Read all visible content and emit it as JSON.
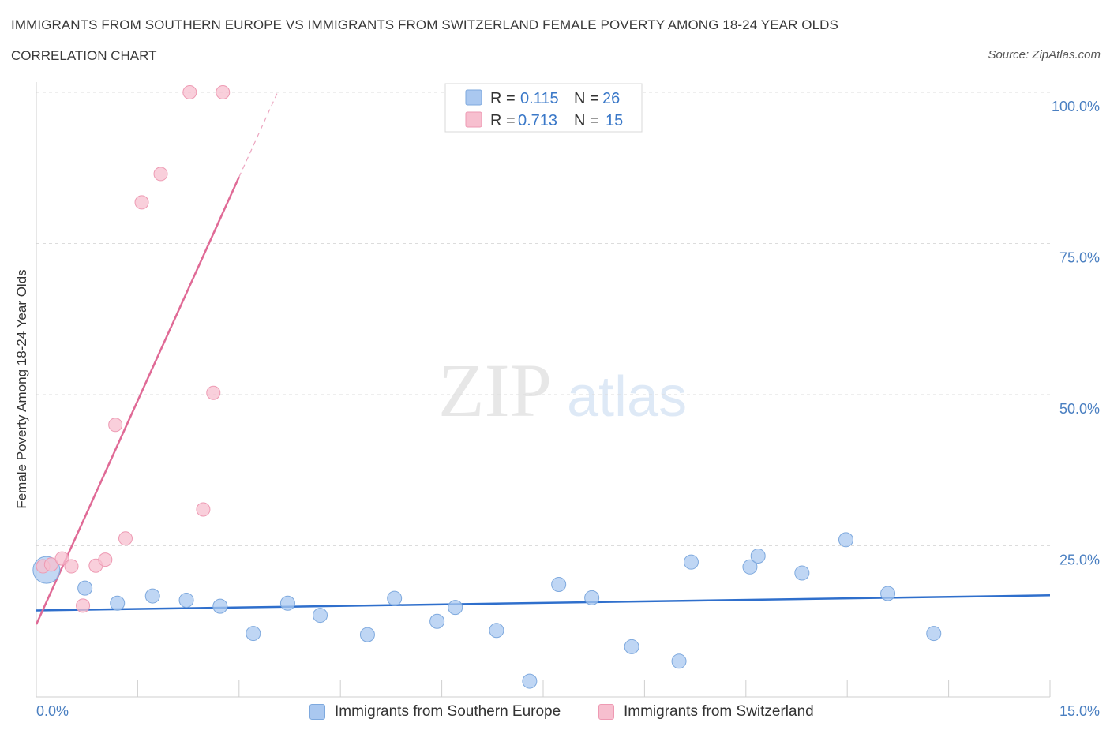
{
  "header": {
    "title": "IMMIGRANTS FROM SOUTHERN EUROPE VS IMMIGRANTS FROM SWITZERLAND FEMALE POVERTY AMONG 18-24 YEAR OLDS",
    "subtitle": "CORRELATION CHART",
    "source": "Source: ZipAtlas.com"
  },
  "watermark": {
    "zip": "ZIP",
    "atlas": "atlas"
  },
  "stats": {
    "row1": {
      "r_label": "R =",
      "r_value": "0.115",
      "n_label": "N =",
      "n_value": "26"
    },
    "row2": {
      "r_label": "R =",
      "r_value": "0.713",
      "n_label": "N =",
      "n_value": "15"
    }
  },
  "legend": {
    "series1": "Immigrants from Southern Europe",
    "series2": "Immigrants from Switzerland"
  },
  "chart_data": {
    "type": "scatter",
    "title": "IMMIGRANTS FROM SOUTHERN EUROPE VS IMMIGRANTS FROM SWITZERLAND FEMALE POVERTY AMONG 18-24 YEAR OLDS",
    "xlabel": "",
    "ylabel": "Female Poverty Among 18-24 Year Olds",
    "xlim": [
      0,
      15
    ],
    "ylim": [
      0,
      100
    ],
    "x_tick_labels": [
      "0.0%",
      "15.0%"
    ],
    "y_ticks": [
      25,
      50,
      75,
      100
    ],
    "y_tick_labels": [
      "25.0%",
      "50.0%",
      "75.0%",
      "100.0%"
    ],
    "grid": true,
    "legend_position": "bottom",
    "colors": {
      "series1_fill": "#aac8f0",
      "series1_stroke": "#7ea9de",
      "series1_line": "#2f6fcc",
      "series2_fill": "#f7bfcf",
      "series2_stroke": "#ee9ab3",
      "series2_line": "#e06a96",
      "tick_text": "#4a7fc1",
      "grid": "#dcdcdc"
    },
    "series": [
      {
        "name": "Immigrants from Southern Europe",
        "points": [
          {
            "x": 0.15,
            "y": 21.0,
            "big": true
          },
          {
            "x": 0.72,
            "y": 18.0
          },
          {
            "x": 1.2,
            "y": 15.5
          },
          {
            "x": 1.72,
            "y": 16.7
          },
          {
            "x": 2.22,
            "y": 16.0
          },
          {
            "x": 2.72,
            "y": 15.0
          },
          {
            "x": 3.21,
            "y": 10.5
          },
          {
            "x": 3.72,
            "y": 15.5
          },
          {
            "x": 4.2,
            "y": 13.5
          },
          {
            "x": 4.9,
            "y": 10.3
          },
          {
            "x": 5.3,
            "y": 16.3
          },
          {
            "x": 5.93,
            "y": 12.5
          },
          {
            "x": 6.2,
            "y": 14.8
          },
          {
            "x": 6.81,
            "y": 11.0
          },
          {
            "x": 7.3,
            "y": 2.6
          },
          {
            "x": 7.73,
            "y": 18.6
          },
          {
            "x": 8.22,
            "y": 16.4
          },
          {
            "x": 8.81,
            "y": 8.3
          },
          {
            "x": 9.51,
            "y": 5.9
          },
          {
            "x": 9.69,
            "y": 22.3
          },
          {
            "x": 10.56,
            "y": 21.5
          },
          {
            "x": 10.68,
            "y": 23.3
          },
          {
            "x": 11.33,
            "y": 20.5
          },
          {
            "x": 11.98,
            "y": 26.0
          },
          {
            "x": 12.6,
            "y": 17.1
          },
          {
            "x": 13.28,
            "y": 10.5
          }
        ],
        "trend": {
          "x0": 0.0,
          "y0": 14.3,
          "x1": 15.0,
          "y1": 16.8
        }
      },
      {
        "name": "Immigrants from Switzerland",
        "points": [
          {
            "x": 0.1,
            "y": 21.6
          },
          {
            "x": 0.22,
            "y": 21.9
          },
          {
            "x": 0.38,
            "y": 22.9
          },
          {
            "x": 0.52,
            "y": 21.6
          },
          {
            "x": 0.69,
            "y": 15.1
          },
          {
            "x": 0.88,
            "y": 21.7
          },
          {
            "x": 1.02,
            "y": 22.7
          },
          {
            "x": 1.17,
            "y": 45.0
          },
          {
            "x": 1.32,
            "y": 26.2
          },
          {
            "x": 1.56,
            "y": 81.8
          },
          {
            "x": 1.84,
            "y": 86.5
          },
          {
            "x": 2.27,
            "y": 100.0
          },
          {
            "x": 2.47,
            "y": 31.0
          },
          {
            "x": 2.62,
            "y": 50.3
          },
          {
            "x": 2.76,
            "y": 100.0
          }
        ],
        "trend": {
          "x0": 0.0,
          "y0": 12.0,
          "x1": 3.0,
          "y1": 86.0
        },
        "trend_extension": {
          "x0": 3.0,
          "y0": 86.0,
          "x1": 3.57,
          "y1": 100.0
        }
      }
    ]
  }
}
